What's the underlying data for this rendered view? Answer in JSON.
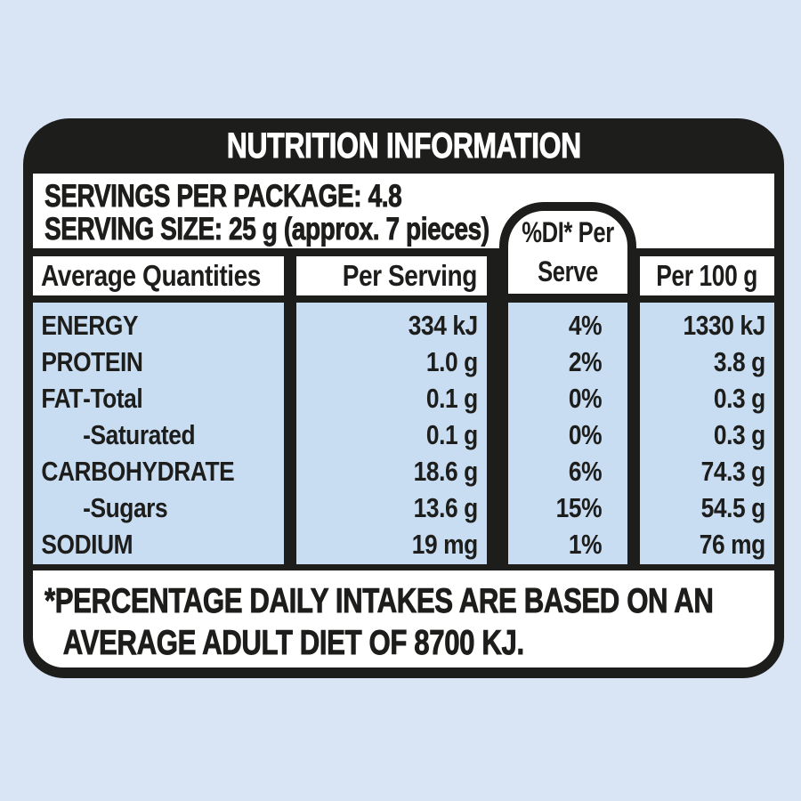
{
  "canvas": {
    "background_color": "#d9e4f4",
    "label_border_color": "#1d1d1b",
    "row_fill_color": "#c9ddf2",
    "cell_fill_color": "#ffffff",
    "title_text_color": "#ffffff"
  },
  "label": {
    "title": "NUTRITION INFORMATION",
    "servings_per_package_line": "SERVINGS PER PACKAGE: 4.8",
    "serving_size_line": "SERVING SIZE: 25 g (approx. 7 pieces)",
    "column_headers": {
      "quantities": "Average Quantities",
      "per_serving": "Per Serving",
      "di_line1": "%DI* Per",
      "di_line2": "Serve",
      "per_100g": "Per 100 g"
    },
    "rows": [
      {
        "name": "ENERGY",
        "per_serving": "334 kJ",
        "di_per_serve": "4%",
        "per_100g": "1330 kJ"
      },
      {
        "name": "PROTEIN",
        "per_serving": "1.0 g",
        "di_per_serve": "2%",
        "per_100g": "3.8 g"
      },
      {
        "name": "FAT",
        "name_sub": "-Total",
        "per_serving": "0.1 g",
        "di_per_serve": "0%",
        "per_100g": "0.3 g"
      },
      {
        "name": "",
        "name_sub": "-Saturated",
        "per_serving": "0.1 g",
        "di_per_serve": "0%",
        "per_100g": "0.3 g"
      },
      {
        "name": "CARBOHYDRATE",
        "per_serving": "18.6 g",
        "di_per_serve": "6%",
        "per_100g": "74.3 g"
      },
      {
        "name": "",
        "name_sub": "-Sugars",
        "per_serving": "13.6 g",
        "di_per_serve": "15%",
        "per_100g": "54.5 g"
      },
      {
        "name": "SODIUM",
        "per_serving": "19 mg",
        "di_per_serve": "1%",
        "per_100g": "76 mg"
      }
    ],
    "footnote_line1": "*PERCENTAGE DAILY INTAKES ARE BASED ON AN",
    "footnote_line2": "AVERAGE ADULT DIET OF 8700 KJ."
  }
}
